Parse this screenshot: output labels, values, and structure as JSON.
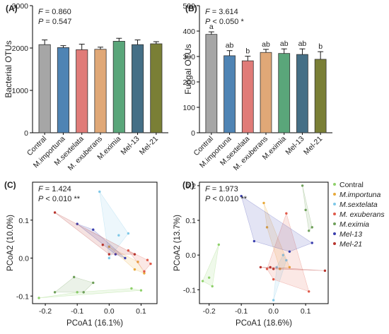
{
  "chart_data": [
    {
      "id": "A",
      "type": "bar",
      "panel_label": "(A)",
      "ylabel": "Bacterial OTUs",
      "ylim": [
        0,
        3000
      ],
      "yticks": [
        "0",
        "1000",
        "2000",
        "3000"
      ],
      "stats": [
        "F = 0.860",
        "P = 0.547"
      ],
      "categories": [
        "Contral",
        "M.importuna",
        "M.sextelata",
        "M. exuberans",
        "M.eximia",
        "Mel-13",
        "Mel-21"
      ],
      "values": [
        2080,
        2010,
        1960,
        1970,
        2160,
        2080,
        2100
      ],
      "errors": [
        110,
        45,
        130,
        50,
        70,
        110,
        50
      ],
      "colors": [
        "#a6a6a6",
        "#4f84b4",
        "#e07b78",
        "#e0a877",
        "#5aa67a",
        "#456f86",
        "#7a7f36"
      ],
      "letters": []
    },
    {
      "id": "B",
      "type": "bar",
      "panel_label": "(B)",
      "ylabel": "Fungal OTUs",
      "ylim": [
        0,
        500
      ],
      "yticks": [
        "0",
        "100",
        "200",
        "300",
        "400",
        "500"
      ],
      "stats": [
        "F = 3.614",
        "P < 0.050 *"
      ],
      "categories": [
        "Contral",
        "M.importuna",
        "M.sextelata",
        "M. exuberans",
        "M.eximia",
        "Mel-13",
        "Mel-21"
      ],
      "values": [
        387,
        303,
        283,
        316,
        312,
        308,
        289
      ],
      "errors": [
        10,
        20,
        18,
        12,
        18,
        22,
        30
      ],
      "colors": [
        "#a6a6a6",
        "#4f84b4",
        "#e07b78",
        "#e0a877",
        "#5aa67a",
        "#456f86",
        "#7a7f36"
      ],
      "letters": [
        "a",
        "ab",
        "b",
        "ab",
        "ab",
        "ab",
        "b"
      ]
    },
    {
      "id": "C",
      "type": "scatter",
      "panel_label": "(C)",
      "xlabel": "PCoA1 (16.1%)",
      "ylabel": "PCoA2 (10.0%)",
      "xlim": [
        -0.24,
        0.15
      ],
      "ylim": [
        -0.12,
        0.2
      ],
      "xticks": [
        -0.2,
        -0.1,
        0.0,
        0.1
      ],
      "xtick_labels": [
        "-0.2",
        "-0.1",
        "0.0",
        "0.1"
      ],
      "yticks": [
        -0.1,
        0.0,
        0.1
      ],
      "ytick_labels": [
        "-0.1",
        "0.0",
        "0.1"
      ],
      "stats": [
        "F = 1.424",
        "P < 0.010 **"
      ],
      "series": [
        {
          "name": "Contral",
          "color": "#8fd16b",
          "points": [
            [
              -0.22,
              -0.105
            ],
            [
              -0.1,
              -0.09
            ],
            [
              0.07,
              -0.08
            ],
            [
              0.1,
              -0.085
            ]
          ]
        },
        {
          "name": "M.importuna",
          "color": "#e8a93a",
          "points": [
            [
              0.0,
              0.03
            ],
            [
              0.08,
              -0.03
            ],
            [
              0.09,
              -0.01
            ],
            [
              0.11,
              -0.04
            ]
          ]
        },
        {
          "name": "M.sextelata",
          "color": "#7fc8e8",
          "points": [
            [
              -0.03,
              0.175
            ],
            [
              0.03,
              0.06
            ],
            [
              0.06,
              0.065
            ],
            [
              0.0,
              0.0
            ]
          ]
        },
        {
          "name": "M. exuberans",
          "color": "#e05a4a",
          "points": [
            [
              0.06,
              0.02
            ],
            [
              0.12,
              -0.005
            ],
            [
              0.13,
              -0.015
            ],
            [
              0.11,
              -0.035
            ]
          ]
        },
        {
          "name": "M.eximia",
          "color": "#6fa05a",
          "points": [
            [
              -0.17,
              -0.09
            ],
            [
              -0.08,
              -0.09
            ],
            [
              -0.11,
              -0.05
            ],
            [
              -0.05,
              -0.065
            ]
          ]
        },
        {
          "name": "Mel-13",
          "color": "#3a3fae",
          "points": [
            [
              -0.1,
              0.09
            ],
            [
              0.02,
              0.01
            ],
            [
              -0.05,
              0.075
            ],
            [
              0.05,
              0.0
            ]
          ]
        },
        {
          "name": "Mel-21",
          "color": "#b8352e",
          "points": [
            [
              -0.17,
              0.12
            ],
            [
              -0.02,
              0.035
            ],
            [
              0.0,
              0.01
            ],
            [
              0.08,
              0.01
            ]
          ]
        }
      ]
    },
    {
      "id": "D",
      "type": "scatter",
      "panel_label": "(D)",
      "xlabel": "PCoA1 (18.6%)",
      "ylabel": "PCoA2 (13.7%)",
      "xlim": [
        -0.23,
        0.17
      ],
      "ylim": [
        -0.14,
        0.21
      ],
      "xticks": [
        -0.2,
        -0.1,
        0.0,
        0.1
      ],
      "xtick_labels": [
        "-0.2",
        "-0.1",
        "0.0",
        "0.1"
      ],
      "yticks": [
        -0.1,
        0.0,
        0.1,
        0.2
      ],
      "ytick_labels": [
        "-0.1",
        "0.0",
        "0.1",
        "0.2"
      ],
      "stats": [
        "F = 1.973",
        "P < 0.010 **"
      ],
      "series": [
        {
          "name": "Contral",
          "color": "#8fd16b",
          "points": [
            [
              -0.22,
              -0.075
            ],
            [
              -0.2,
              -0.065
            ],
            [
              -0.17,
              0.03
            ],
            [
              -0.19,
              -0.09
            ]
          ]
        },
        {
          "name": "M.importuna",
          "color": "#e8a93a",
          "points": [
            [
              -0.03,
              0.15
            ],
            [
              0.05,
              -0.035
            ],
            [
              0.02,
              -0.04
            ],
            [
              -0.02,
              0.08
            ]
          ]
        },
        {
          "name": "M.sextelata",
          "color": "#7fc8e8",
          "points": [
            [
              0.01,
              -0.035
            ],
            [
              0.04,
              -0.015
            ],
            [
              0.0,
              -0.13
            ],
            [
              0.03,
              0.0
            ]
          ]
        },
        {
          "name": "M. exuberans",
          "color": "#e05a4a",
          "points": [
            [
              0.0,
              -0.07
            ],
            [
              0.11,
              -0.105
            ],
            [
              0.04,
              0.12
            ],
            [
              -0.02,
              -0.04
            ]
          ]
        },
        {
          "name": "M.eximia",
          "color": "#6fa05a",
          "points": [
            [
              0.09,
              0.2
            ],
            [
              0.1,
              0.13
            ],
            [
              0.11,
              0.07
            ],
            [
              0.12,
              0.08
            ]
          ]
        },
        {
          "name": "Mel-13",
          "color": "#3a3fae",
          "points": [
            [
              -0.1,
              0.17
            ],
            [
              -0.06,
              0.04
            ],
            [
              0.12,
              0.035
            ],
            [
              0.05,
              0.01
            ]
          ]
        },
        {
          "name": "Mel-21",
          "color": "#b8352e",
          "points": [
            [
              -0.04,
              -0.035
            ],
            [
              -0.01,
              -0.035
            ],
            [
              0.0,
              -0.04
            ],
            [
              0.16,
              -0.045
            ]
          ]
        }
      ]
    }
  ],
  "legend": [
    "Contral",
    "M.importuna",
    "M.sextelata",
    "M. exuberans",
    "M.eximia",
    "Mel-13",
    "Mel-21"
  ],
  "legend_colors": [
    "#8fd16b",
    "#e8a93a",
    "#7fc8e8",
    "#e05a4a",
    "#6fa05a",
    "#3a3fae",
    "#b8352e"
  ]
}
